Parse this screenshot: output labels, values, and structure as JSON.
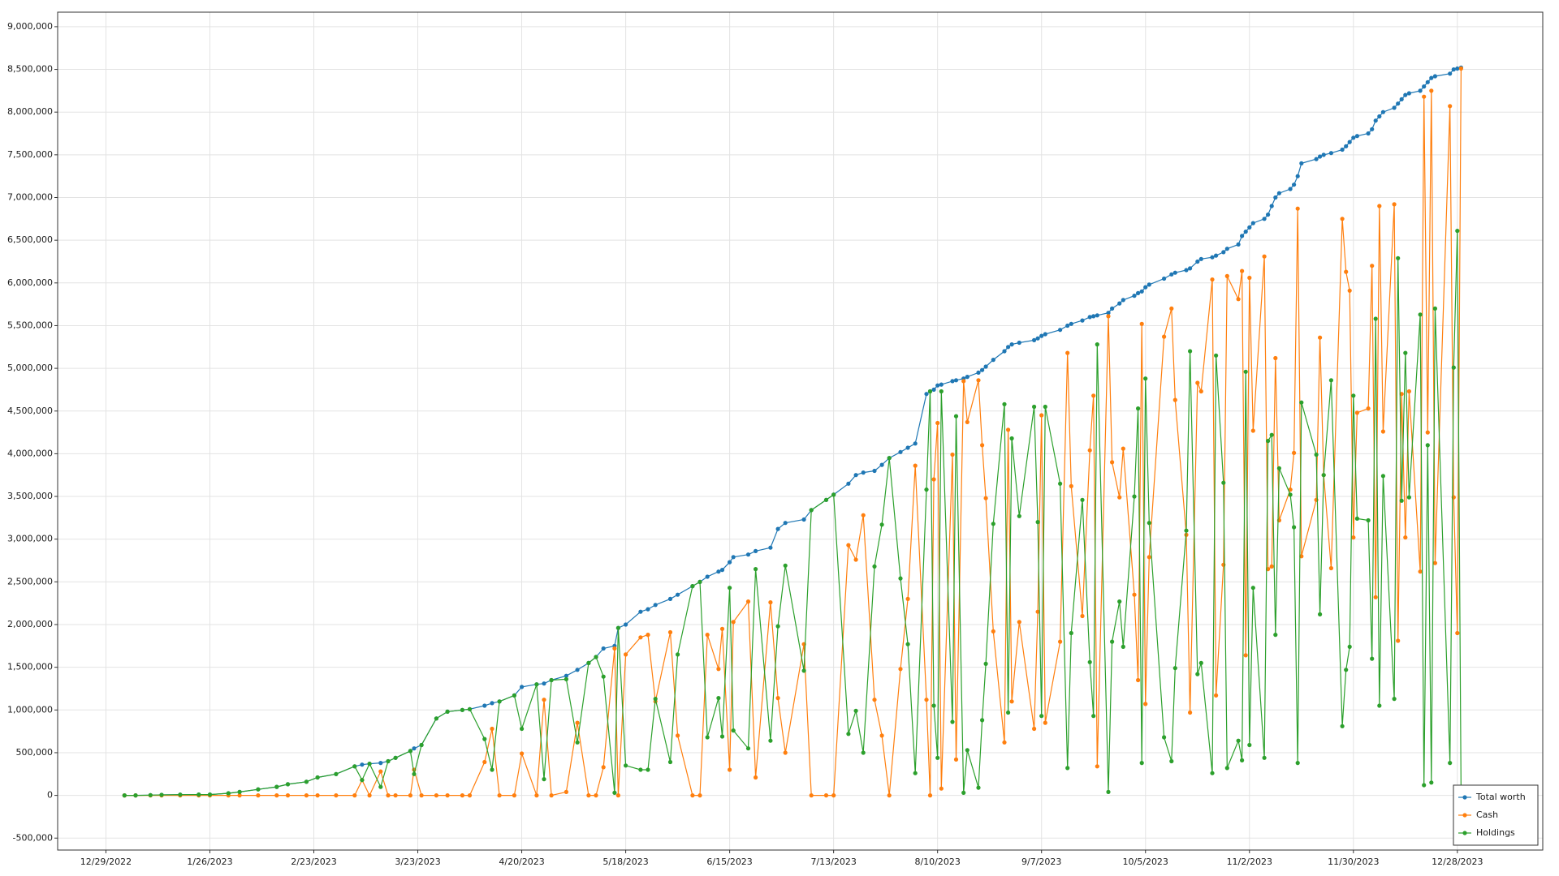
{
  "chart_data": {
    "type": "line",
    "x": [
      "1/3/2023",
      "1/6/2023",
      "1/10/2023",
      "1/13/2023",
      "1/18/2023",
      "1/23/2023",
      "1/26/2023",
      "1/31/2023",
      "2/3/2023",
      "2/8/2023",
      "2/13/2023",
      "2/16/2023",
      "2/21/2023",
      "2/24/2023",
      "3/1/2023",
      "3/6/2023",
      "3/8/2023",
      "3/10/2023",
      "3/13/2023",
      "3/15/2023",
      "3/17/2023",
      "3/21/2023",
      "3/22/2023",
      "3/24/2023",
      "3/28/2023",
      "3/31/2023",
      "4/4/2023",
      "4/6/2023",
      "4/10/2023",
      "4/12/2023",
      "4/14/2023",
      "4/18/2023",
      "4/20/2023",
      "4/24/2023",
      "4/26/2023",
      "4/28/2023",
      "5/2/2023",
      "5/5/2023",
      "5/8/2023",
      "5/10/2023",
      "5/12/2023",
      "5/15/2023",
      "5/16/2023",
      "5/18/2023",
      "5/22/2023",
      "5/24/2023",
      "5/26/2023",
      "5/30/2023",
      "6/1/2023",
      "6/5/2023",
      "6/7/2023",
      "6/9/2023",
      "6/12/2023",
      "6/13/2023",
      "6/15/2023",
      "6/16/2023",
      "6/20/2023",
      "6/22/2023",
      "6/26/2023",
      "6/28/2023",
      "6/30/2023",
      "7/5/2023",
      "7/7/2023",
      "7/11/2023",
      "7/13/2023",
      "7/17/2023",
      "7/19/2023",
      "7/21/2023",
      "7/24/2023",
      "7/26/2023",
      "7/28/2023",
      "7/31/2023",
      "8/2/2023",
      "8/4/2023",
      "8/7/2023",
      "8/8/2023",
      "8/9/2023",
      "8/10/2023",
      "8/11/2023",
      "8/14/2023",
      "8/15/2023",
      "8/17/2023",
      "8/18/2023",
      "8/21/2023",
      "8/22/2023",
      "8/23/2023",
      "8/25/2023",
      "8/28/2023",
      "8/29/2023",
      "8/30/2023",
      "9/1/2023",
      "9/5/2023",
      "9/6/2023",
      "9/7/2023",
      "9/8/2023",
      "9/12/2023",
      "9/14/2023",
      "9/15/2023",
      "9/18/2023",
      "9/20/2023",
      "9/21/2023",
      "9/22/2023",
      "9/25/2023",
      "9/26/2023",
      "9/28/2023",
      "9/29/2023",
      "10/2/2023",
      "10/3/2023",
      "10/4/2023",
      "10/5/2023",
      "10/6/2023",
      "10/10/2023",
      "10/12/2023",
      "10/13/2023",
      "10/16/2023",
      "10/17/2023",
      "10/19/2023",
      "10/20/2023",
      "10/23/2023",
      "10/24/2023",
      "10/26/2023",
      "10/27/2023",
      "10/30/2023",
      "10/31/2023",
      "11/1/2023",
      "11/2/2023",
      "11/3/2023",
      "11/6/2023",
      "11/7/2023",
      "11/8/2023",
      "11/9/2023",
      "11/10/2023",
      "11/13/2023",
      "11/14/2023",
      "11/15/2023",
      "11/16/2023",
      "11/20/2023",
      "11/21/2023",
      "11/22/2023",
      "11/24/2023",
      "11/27/2023",
      "11/28/2023",
      "11/29/2023",
      "11/30/2023",
      "12/1/2023",
      "12/4/2023",
      "12/5/2023",
      "12/6/2023",
      "12/7/2023",
      "12/8/2023",
      "12/11/2023",
      "12/12/2023",
      "12/13/2023",
      "12/14/2023",
      "12/15/2023",
      "12/18/2023",
      "12/19/2023",
      "12/20/2023",
      "12/21/2023",
      "12/22/2023",
      "12/26/2023",
      "12/27/2023",
      "12/28/2023",
      "12/29/2023"
    ],
    "series": [
      {
        "name": "Total worth",
        "color": "#1f77b4",
        "values": [
          0,
          0,
          3000,
          6000,
          9000,
          10000,
          10000,
          25000,
          40000,
          70000,
          100000,
          130000,
          160000,
          210000,
          250000,
          340000,
          360000,
          370000,
          380000,
          400000,
          440000,
          520000,
          550000,
          590000,
          900000,
          980000,
          1000000,
          1010000,
          1050000,
          1080000,
          1100000,
          1170000,
          1270000,
          1300000,
          1310000,
          1350000,
          1400000,
          1470000,
          1550000,
          1620000,
          1720000,
          1750000,
          1960000,
          2000000,
          2150000,
          2180000,
          2230000,
          2300000,
          2350000,
          2450000,
          2500000,
          2560000,
          2620000,
          2640000,
          2730000,
          2790000,
          2820000,
          2860000,
          2900000,
          3120000,
          3190000,
          3230000,
          3340000,
          3460000,
          3520000,
          3650000,
          3750000,
          3780000,
          3800000,
          3870000,
          3950000,
          4020000,
          4070000,
          4120000,
          4700000,
          4730000,
          4750000,
          4800000,
          4810000,
          4850000,
          4860000,
          4880000,
          4900000,
          4950000,
          4980000,
          5020000,
          5100000,
          5200000,
          5250000,
          5280000,
          5300000,
          5330000,
          5350000,
          5380000,
          5400000,
          5450000,
          5500000,
          5520000,
          5560000,
          5600000,
          5610000,
          5620000,
          5650000,
          5700000,
          5760000,
          5800000,
          5850000,
          5880000,
          5900000,
          5950000,
          5980000,
          6050000,
          6100000,
          6120000,
          6150000,
          6170000,
          6250000,
          6280000,
          6300000,
          6320000,
          6360000,
          6400000,
          6450000,
          6550000,
          6600000,
          6650000,
          6700000,
          6750000,
          6800000,
          6900000,
          7000000,
          7050000,
          7100000,
          7150000,
          7250000,
          7400000,
          7450000,
          7480000,
          7500000,
          7520000,
          7560000,
          7600000,
          7650000,
          7700000,
          7720000,
          7750000,
          7800000,
          7900000,
          7950000,
          8000000,
          8050000,
          8100000,
          8150000,
          8200000,
          8220000,
          8250000,
          8300000,
          8350000,
          8400000,
          8420000,
          8450000,
          8500000,
          8510000,
          8520000
        ]
      },
      {
        "name": "Cash",
        "color": "#ff7f0e",
        "values": [
          0,
          0,
          0,
          0,
          0,
          0,
          0,
          0,
          0,
          0,
          0,
          0,
          0,
          0,
          0,
          0,
          180000,
          0,
          280000,
          0,
          0,
          0,
          300000,
          0,
          0,
          0,
          0,
          0,
          390000,
          780000,
          0,
          0,
          490000,
          0,
          1120000,
          0,
          40000,
          850000,
          0,
          0,
          330000,
          1720000,
          0,
          1650000,
          1850000,
          1880000,
          1100000,
          1910000,
          700000,
          0,
          0,
          1880000,
          1480000,
          1950000,
          300000,
          2030000,
          2270000,
          210000,
          2260000,
          1140000,
          500000,
          1770000,
          0,
          0,
          0,
          2930000,
          2760000,
          3280000,
          1120000,
          700000,
          0,
          1480000,
          2300000,
          3860000,
          1120000,
          0,
          3700000,
          4360000,
          80000,
          3990000,
          420000,
          4850000,
          4370000,
          4860000,
          4100000,
          3480000,
          1920000,
          620000,
          4280000,
          1100000,
          2030000,
          780000,
          2150000,
          4450000,
          850000,
          1800000,
          5180000,
          3620000,
          2100000,
          4040000,
          4680000,
          340000,
          5610000,
          3900000,
          3490000,
          4060000,
          2350000,
          1350000,
          5520000,
          1070000,
          2790000,
          5370000,
          5700000,
          4630000,
          3050000,
          970000,
          4830000,
          4730000,
          6040000,
          1170000,
          2700000,
          6080000,
          5810000,
          6140000,
          1640000,
          6060000,
          4270000,
          6310000,
          2650000,
          2680000,
          5120000,
          3220000,
          3580000,
          4010000,
          6870000,
          2800000,
          3460000,
          5360000,
          3750000,
          2660000,
          6750000,
          6130000,
          5910000,
          3020000,
          4480000,
          4530000,
          6200000,
          2320000,
          6900000,
          4260000,
          6920000,
          1810000,
          4700000,
          3020000,
          4730000,
          2620000,
          8180000,
          4250000,
          8250000,
          2720000,
          8070000,
          3490000,
          1900000,
          8510000
        ]
      },
      {
        "name": "Holdings",
        "color": "#2ca02c",
        "values": [
          0,
          0,
          3000,
          6000,
          9000,
          10000,
          10000,
          25000,
          40000,
          70000,
          100000,
          130000,
          160000,
          210000,
          250000,
          340000,
          180000,
          370000,
          100000,
          400000,
          440000,
          520000,
          250000,
          590000,
          900000,
          980000,
          1000000,
          1010000,
          660000,
          300000,
          1100000,
          1170000,
          780000,
          1300000,
          190000,
          1350000,
          1360000,
          620000,
          1550000,
          1620000,
          1390000,
          30000,
          1960000,
          350000,
          300000,
          300000,
          1130000,
          390000,
          1650000,
          2450000,
          2500000,
          680000,
          1140000,
          690000,
          2430000,
          760000,
          550000,
          2650000,
          640000,
          1980000,
          2690000,
          1460000,
          3340000,
          3460000,
          3520000,
          720000,
          990000,
          500000,
          2680000,
          3170000,
          3950000,
          2540000,
          1770000,
          260000,
          3580000,
          4730000,
          1050000,
          440000,
          4730000,
          860000,
          4440000,
          30000,
          530000,
          90000,
          880000,
          1540000,
          3180000,
          4580000,
          970000,
          4180000,
          3270000,
          4550000,
          3200000,
          930000,
          4550000,
          3650000,
          320000,
          1900000,
          3460000,
          1560000,
          930000,
          5280000,
          40000,
          1800000,
          2270000,
          1740000,
          3500000,
          4530000,
          380000,
          4880000,
          3190000,
          680000,
          400000,
          1490000,
          3100000,
          5200000,
          1420000,
          1550000,
          260000,
          5150000,
          3660000,
          320000,
          640000,
          410000,
          4960000,
          590000,
          2430000,
          440000,
          4150000,
          4220000,
          1880000,
          3830000,
          3520000,
          3140000,
          380000,
          4600000,
          3990000,
          2120000,
          3750000,
          4860000,
          810000,
          1470000,
          1740000,
          4680000,
          3240000,
          3220000,
          1600000,
          5580000,
          1050000,
          3740000,
          1130000,
          6290000,
          3450000,
          5180000,
          3490000,
          5630000,
          120000,
          4100000,
          150000,
          5700000,
          380000,
          5010000,
          6610000,
          10000
        ]
      }
    ],
    "xlim": [
      "12/16/2022",
      "1/20/2024"
    ],
    "xticks": [
      "12/29/2022",
      "1/26/2023",
      "2/23/2023",
      "3/23/2023",
      "4/20/2023",
      "5/18/2023",
      "6/15/2023",
      "7/13/2023",
      "8/10/2023",
      "9/7/2023",
      "10/5/2023",
      "11/2/2023",
      "11/30/2023",
      "12/28/2023"
    ],
    "ylim": [
      -640000,
      9170000
    ],
    "yticks": [
      {
        "value": -500000,
        "label": "-500,000"
      },
      0,
      {
        "value": 500000,
        "label": "500,000"
      },
      {
        "value": 1000000,
        "label": "1,000,000"
      },
      {
        "value": 1500000,
        "label": "1,500,000"
      },
      {
        "value": 2000000,
        "label": "2,000,000"
      },
      {
        "value": 2500000,
        "label": "2,500,000"
      },
      {
        "value": 3000000,
        "label": "3,000,000"
      },
      {
        "value": 3500000,
        "label": "3,500,000"
      },
      {
        "value": 4000000,
        "label": "4,000,000"
      },
      {
        "value": 4500000,
        "label": "4,500,000"
      },
      {
        "value": 5000000,
        "label": "5,000,000"
      },
      {
        "value": 5500000,
        "label": "5,500,000"
      },
      {
        "value": 6000000,
        "label": "6,000,000"
      },
      {
        "value": 6500000,
        "label": "6,500,000"
      },
      {
        "value": 7000000,
        "label": "7,000,000"
      },
      {
        "value": 7500000,
        "label": "7,500,000"
      },
      {
        "value": 8000000,
        "label": "8,000,000"
      },
      {
        "value": 8500000,
        "label": "8,500,000"
      },
      {
        "value": 9000000,
        "label": "9,000,000"
      }
    ],
    "grid": true,
    "legend": "lower right"
  }
}
